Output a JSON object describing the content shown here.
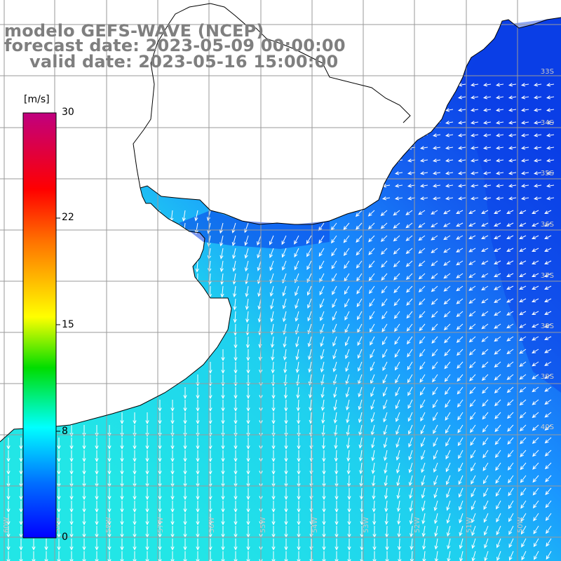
{
  "title": {
    "line1": "modelo GEFS-WAVE (NCEP)",
    "line2": "forecast date: 2023-05-09 00:00:00",
    "line3": "valid date: 2023-05-16 15:00:00"
  },
  "colorbar": {
    "unit": "[m/s]",
    "ticks": [
      "30",
      "22",
      "15",
      "8",
      "0"
    ],
    "colors": [
      "#0000ff",
      "#00aaff",
      "#00ffff",
      "#00ff00",
      "#ffff00",
      "#ff8800",
      "#ff0000",
      "#c0007f"
    ]
  },
  "map": {
    "lat_labels": [
      "33S",
      "34S",
      "35S",
      "36S",
      "37S",
      "38S",
      "39S",
      "40S"
    ],
    "lon_labels": [
      "60W",
      "59W",
      "58W",
      "57W",
      "56W",
      "55W",
      "54W",
      "53W",
      "52W",
      "51W",
      "50W"
    ],
    "colors": {
      "land": "#ffffff",
      "coastline": "#000000",
      "grid": "#9a9a9a",
      "arrows": "#ffffff",
      "strong_wind": "#0a3fe6",
      "medium_wind": "#1a96ff",
      "weak_wind": "#22e6e6"
    },
    "variable": "wind speed and direction",
    "arrow_direction": "mostly southward / south-westward"
  }
}
